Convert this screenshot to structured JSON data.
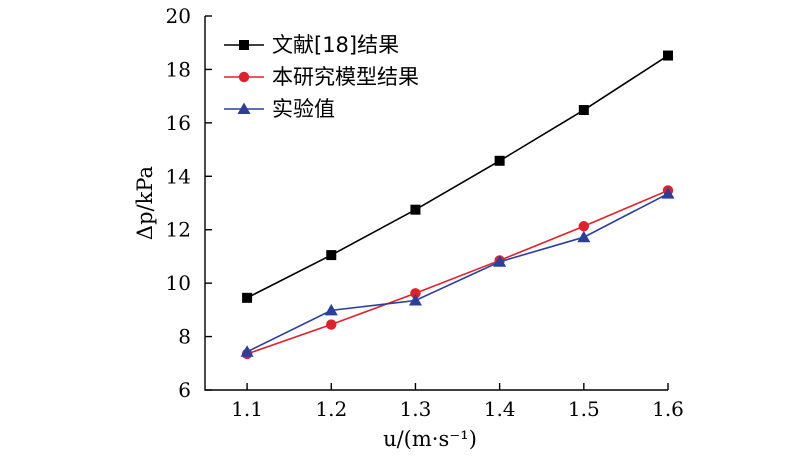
{
  "chart_data": {
    "type": "line",
    "title": "",
    "xlabel": "u/(m·s⁻¹)",
    "ylabel": "Δp/kPa",
    "xlim": [
      1.05,
      1.6
    ],
    "ylim": [
      6,
      20
    ],
    "x_ticks": [
      "1.1",
      "1.2",
      "1.3",
      "1.4",
      "1.5",
      "1.6"
    ],
    "y_ticks": [
      "6",
      "8",
      "10",
      "12",
      "14",
      "16",
      "18",
      "20"
    ],
    "grid": false,
    "legend_position": "top-left",
    "x": [
      1.1,
      1.2,
      1.3,
      1.4,
      1.5,
      1.6
    ],
    "series": [
      {
        "name": "文献[18]结果",
        "color": "#000000",
        "marker": "square",
        "values": [
          9.45,
          11.05,
          12.75,
          14.58,
          16.48,
          18.52
        ]
      },
      {
        "name": "本研究模型结果",
        "color": "#e0202a",
        "marker": "circle",
        "values": [
          7.35,
          8.45,
          9.62,
          10.85,
          12.13,
          13.47
        ]
      },
      {
        "name": "实验值",
        "color": "#2a3f9a",
        "marker": "triangle",
        "values": [
          7.43,
          8.98,
          9.35,
          10.8,
          11.72,
          13.35
        ]
      }
    ]
  }
}
